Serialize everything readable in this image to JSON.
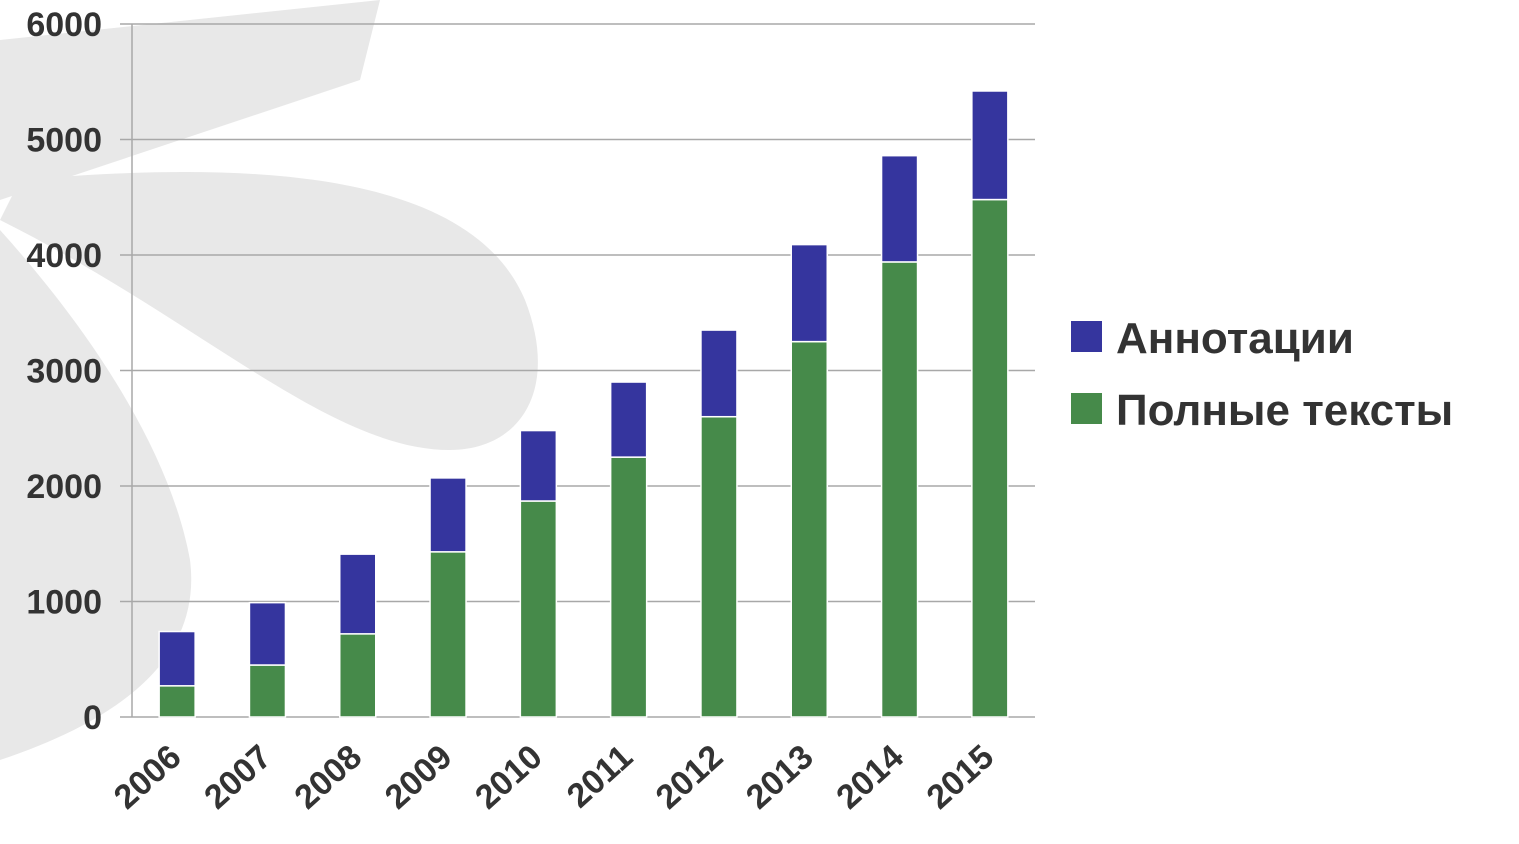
{
  "chart_data": {
    "type": "bar",
    "stacked": true,
    "categories": [
      "2006",
      "2007",
      "2008",
      "2009",
      "2010",
      "2011",
      "2012",
      "2013",
      "2014",
      "2015"
    ],
    "series": [
      {
        "name": "Полные тексты",
        "color": "#468a4a",
        "values": [
          270,
          450,
          720,
          1430,
          1870,
          2250,
          2600,
          3250,
          3940,
          4480
        ]
      },
      {
        "name": "Аннотации",
        "color": "#35359e",
        "values": [
          470,
          540,
          690,
          640,
          610,
          650,
          750,
          840,
          920,
          940
        ]
      }
    ],
    "ylim": [
      0,
      6000
    ],
    "yticks": [
      0,
      1000,
      2000,
      3000,
      4000,
      5000,
      6000
    ],
    "grid": true,
    "legend_position": "right",
    "legend_order": [
      "Аннотации",
      "Полные тексты"
    ]
  }
}
